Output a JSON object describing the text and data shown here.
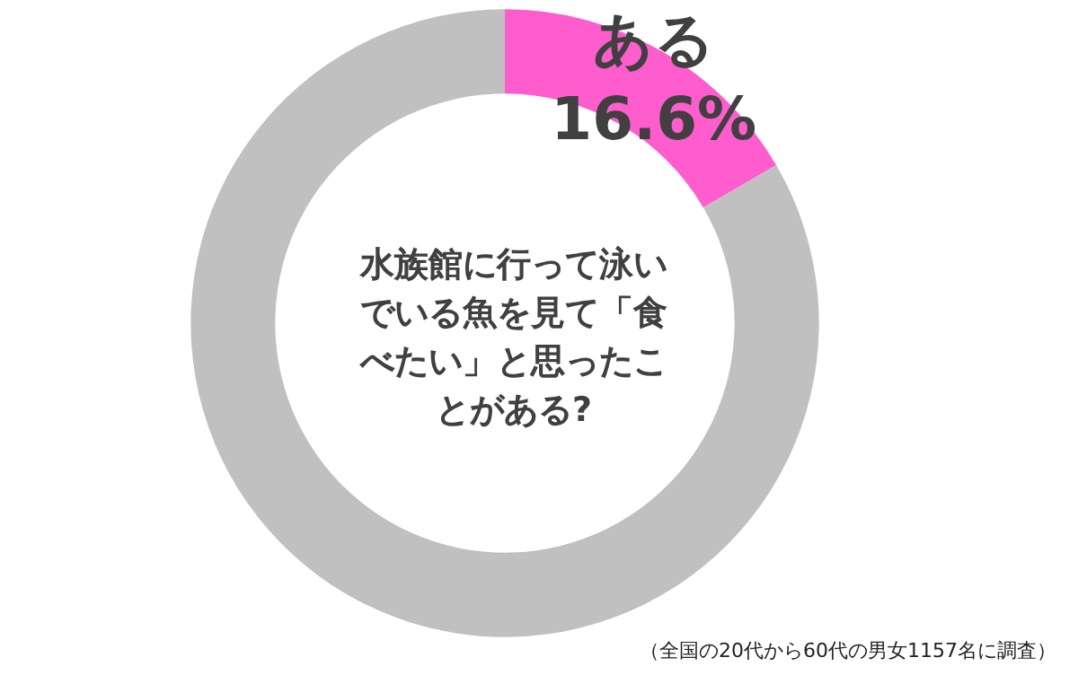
{
  "chart_data": {
    "type": "donut",
    "title": "水族館に行って泳いでいる魚を見て「食べたい」と思ったことがある?",
    "categories": [
      "ある",
      null
    ],
    "values": [
      16.6,
      83.4
    ],
    "colors": [
      "#ff5ccd",
      "#c0c0c0"
    ],
    "value_labels": [
      "16.6%",
      null
    ],
    "legend": false,
    "annotations": [
      "（全国の20代から60代の男女1157名に調査）"
    ]
  }
}
